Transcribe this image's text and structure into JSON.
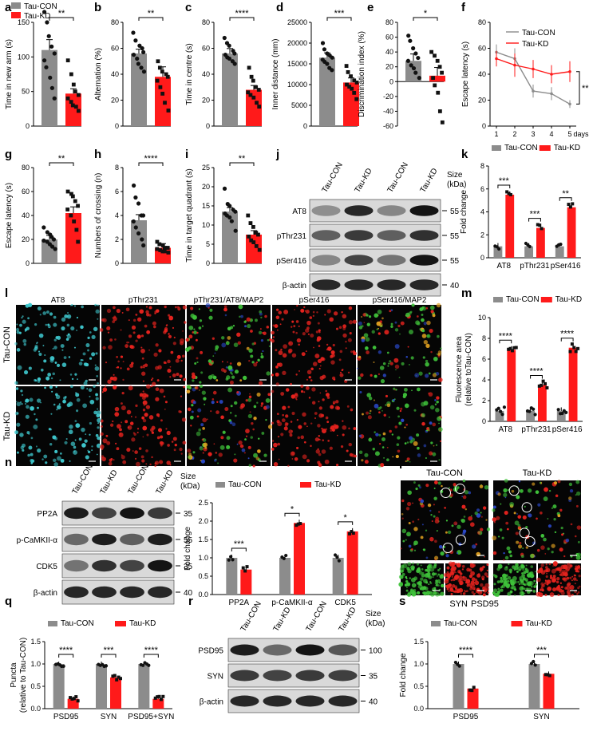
{
  "colors": {
    "con": "#8c8c8c",
    "kd": "#ff1a1a",
    "dot": "#111111",
    "ifGreen": "#3fc23a",
    "ifRed": "#e8231e",
    "ifCyan": "#3fc9cf",
    "ifBlue": "#2a48c8"
  },
  "legend": {
    "con": "Tau-CON",
    "kd": "Tau-KD"
  },
  "panel_labels": [
    "a",
    "b",
    "c",
    "d",
    "e",
    "f",
    "g",
    "h",
    "i",
    "j",
    "k",
    "l",
    "m",
    "n",
    "o",
    "p",
    "q",
    "r",
    "s"
  ],
  "chart_data": [
    {
      "id": "a",
      "type": "bar",
      "ylabel": "Time in new arm (s)",
      "ylim": [
        0,
        150
      ],
      "ticks": [
        0,
        50,
        100,
        150
      ],
      "values": [
        110,
        47
      ],
      "sig": "**",
      "dots": [
        [
          165,
          150,
          130,
          115,
          105,
          95,
          85,
          70,
          55,
          40
        ],
        [
          95,
          75,
          60,
          50,
          45,
          40,
          35,
          30,
          28,
          22
        ]
      ]
    },
    {
      "id": "b",
      "type": "bar",
      "ylabel": "Alternation (%)",
      "ylim": [
        0,
        80
      ],
      "ticks": [
        0,
        20,
        40,
        60,
        80
      ],
      "values": [
        56,
        38
      ],
      "sig": "**",
      "dots": [
        [
          72,
          66,
          62,
          60,
          57,
          55,
          52,
          48,
          45,
          42
        ],
        [
          50,
          45,
          42,
          40,
          38,
          35,
          30,
          25,
          18,
          12
        ]
      ]
    },
    {
      "id": "c",
      "type": "bar",
      "ylabel": "Time in centre (s)",
      "ylim": [
        0,
        80
      ],
      "ticks": [
        0,
        20,
        40,
        60,
        80
      ],
      "values": [
        56,
        28
      ],
      "sig": "****",
      "dots": [
        [
          68,
          64,
          62,
          58,
          56,
          55,
          53,
          52,
          50,
          48
        ],
        [
          45,
          38,
          35,
          30,
          28,
          26,
          24,
          22,
          18,
          15
        ]
      ]
    },
    {
      "id": "d",
      "type": "bar",
      "ylabel": "Inner distance (mm)",
      "ylim": [
        0,
        25000
      ],
      "ticks": [
        0,
        5000,
        10000,
        15000,
        20000,
        25000
      ],
      "values": [
        16500,
        10500
      ],
      "sig": "***",
      "dots": [
        [
          20000,
          18500,
          17500,
          17000,
          16500,
          16000,
          15500,
          15000,
          14000,
          13500
        ],
        [
          14500,
          13000,
          12000,
          11000,
          10500,
          10000,
          9500,
          9000,
          8000,
          6500
        ]
      ]
    },
    {
      "id": "e",
      "type": "bar",
      "ylabel": "Discrimination index (%)",
      "ylim": [
        -60,
        80
      ],
      "ticks": [
        -60,
        -40,
        -20,
        0,
        20,
        40,
        60,
        80
      ],
      "values": [
        28,
        8
      ],
      "sig": "*",
      "dots": [
        [
          62,
          55,
          45,
          38,
          32,
          28,
          22,
          18,
          12,
          5
        ],
        [
          40,
          35,
          28,
          20,
          12,
          5,
          -5,
          -15,
          -40,
          -55
        ]
      ]
    },
    {
      "id": "f",
      "type": "line",
      "ylabel": "Escape latency (s)",
      "xlabel": "days",
      "ylim": [
        0,
        80
      ],
      "ticks": [
        0,
        20,
        40,
        60,
        80
      ],
      "x": [
        1,
        2,
        3,
        4,
        5
      ],
      "sig": "**",
      "series": [
        {
          "name": "Tau-CON",
          "values": [
            57,
            52,
            27,
            25,
            17
          ],
          "err": [
            6,
            8,
            5,
            5,
            3
          ]
        },
        {
          "name": "Tau-KD",
          "values": [
            52,
            47,
            44,
            40,
            42
          ],
          "err": [
            6,
            9,
            7,
            7,
            8
          ]
        }
      ]
    },
    {
      "id": "g",
      "type": "bar",
      "ylabel": "Escape latency (s)",
      "ylim": [
        0,
        80
      ],
      "ticks": [
        0,
        20,
        40,
        60,
        80
      ],
      "values": [
        20,
        42
      ],
      "sig": "**",
      "dots": [
        [
          30,
          26,
          24,
          22,
          20,
          19,
          18,
          16,
          14,
          12
        ],
        [
          60,
          58,
          56,
          52,
          48,
          45,
          40,
          35,
          28,
          18
        ]
      ]
    },
    {
      "id": "h",
      "type": "bar",
      "ylabel": "Numbers of crossing (n)",
      "ylim": [
        0,
        8
      ],
      "ticks": [
        0,
        2,
        4,
        6,
        8
      ],
      "values": [
        3.6,
        1.3
      ],
      "sig": "****",
      "dots": [
        [
          6.5,
          5.5,
          5,
          4,
          4,
          3.5,
          3,
          2.5,
          2,
          1.5
        ],
        [
          1.8,
          1.6,
          1.5,
          1.3,
          1.3,
          1.2,
          1.1,
          1,
          1,
          0.9
        ]
      ]
    },
    {
      "id": "i",
      "type": "bar",
      "ylabel": "Time in target quadrant (s)",
      "ylim": [
        0,
        25
      ],
      "ticks": [
        0,
        5,
        10,
        15,
        20,
        25
      ],
      "values": [
        13.5,
        7.5
      ],
      "sig": "**",
      "dots": [
        [
          19.5,
          15.5,
          15,
          14,
          13.5,
          13,
          12.5,
          12,
          11,
          8.5
        ],
        [
          12.5,
          10.5,
          9.5,
          8,
          7.5,
          7,
          6,
          5.5,
          4.5,
          3.5
        ]
      ]
    },
    {
      "id": "k",
      "type": "bar",
      "ylabel": "Fold change",
      "ylim": [
        0,
        8
      ],
      "ticks": [
        0,
        2,
        4,
        6,
        8
      ],
      "categories": [
        "AT8",
        "pThr231",
        "pSer416"
      ],
      "series": [
        {
          "name": "Tau-CON",
          "values": [
            1,
            1,
            1
          ]
        },
        {
          "name": "Tau-KD",
          "values": [
            5.5,
            2.6,
            4.4
          ]
        }
      ],
      "sig": [
        "***",
        "***",
        "**"
      ]
    },
    {
      "id": "m",
      "type": "bar",
      "ylabel": "Fluorescence area (relative toTau-CON)",
      "ylim": [
        0,
        10
      ],
      "ticks": [
        0,
        2,
        4,
        6,
        8,
        10
      ],
      "categories": [
        "AT8",
        "pThr231",
        "pSer416"
      ],
      "series": [
        {
          "name": "Tau-CON",
          "values": [
            1,
            1,
            1
          ]
        },
        {
          "name": "Tau-KD",
          "values": [
            6.9,
            3.5,
            7.1
          ]
        }
      ],
      "sig": [
        "****",
        "****",
        "****"
      ]
    },
    {
      "id": "o",
      "type": "bar",
      "ylabel": "Fold change",
      "ylim": [
        0,
        2.5
      ],
      "ticks": [
        0.0,
        0.5,
        1.0,
        1.5,
        2.0,
        2.5
      ],
      "categories": [
        "PP2A",
        "p-CaMKII-α",
        "CDK5"
      ],
      "series": [
        {
          "name": "Tau-CON",
          "values": [
            1.0,
            1.0,
            1.0
          ]
        },
        {
          "name": "Tau-KD",
          "values": [
            0.68,
            1.95,
            1.72
          ]
        }
      ],
      "sig": [
        "***",
        "*",
        "*"
      ]
    },
    {
      "id": "q",
      "type": "bar",
      "ylabel": "Puncta (relative to Tau-CON)",
      "ylim": [
        0,
        1.5
      ],
      "ticks": [
        0.0,
        0.5,
        1.0,
        1.5
      ],
      "categories": [
        "PSD95",
        "SYN",
        "PSD95+SYN"
      ],
      "series": [
        {
          "name": "Tau-CON",
          "values": [
            1.0,
            1.0,
            1.0
          ]
        },
        {
          "name": "Tau-KD",
          "values": [
            0.22,
            0.7,
            0.22
          ]
        }
      ],
      "sig": [
        "****",
        "***",
        "****"
      ]
    },
    {
      "id": "s",
      "type": "bar",
      "ylabel": "Fold change",
      "ylim": [
        0,
        1.5
      ],
      "ticks": [
        0.0,
        0.5,
        1.0,
        1.5
      ],
      "categories": [
        "PSD95",
        "SYN"
      ],
      "series": [
        {
          "name": "Tau-CON",
          "values": [
            1.0,
            1.0
          ]
        },
        {
          "name": "Tau-KD",
          "values": [
            0.45,
            0.78
          ]
        }
      ],
      "sig": [
        "****",
        "***"
      ]
    }
  ],
  "blots": {
    "j": {
      "lanes": [
        "Tau-CON",
        "Tau-KD",
        "Tau-CON",
        "Tau-KD"
      ],
      "size_header": "Size (kDa)",
      "rows": [
        {
          "label": "AT8",
          "size": "55",
          "bands": [
            0.3,
            0.85,
            0.35,
            0.95
          ]
        },
        {
          "label": "pThr231",
          "size": "55",
          "bands": [
            0.55,
            0.75,
            0.55,
            0.8
          ]
        },
        {
          "label": "pSer416",
          "size": "55",
          "bands": [
            0.35,
            0.7,
            0.45,
            0.95
          ]
        },
        {
          "label": "β-actin",
          "size": "40",
          "bands": [
            0.85,
            0.85,
            0.85,
            0.85
          ]
        }
      ]
    },
    "n": {
      "lanes": [
        "Tau-CON",
        "Tau-KD",
        "Tau-CON",
        "Tau-KD"
      ],
      "size_header": "Size (kDa)",
      "rows": [
        {
          "label": "PP2A",
          "size": "35",
          "bands": [
            0.9,
            0.7,
            0.95,
            0.75
          ]
        },
        {
          "label": "p-CaMKII-α",
          "size": "55",
          "bands": [
            0.5,
            0.9,
            0.55,
            0.9
          ]
        },
        {
          "label": "CDK5",
          "size": "35",
          "bands": [
            0.45,
            0.8,
            0.7,
            0.95
          ]
        },
        {
          "label": "β-actin",
          "size": "40",
          "bands": [
            0.85,
            0.85,
            0.85,
            0.85
          ]
        }
      ]
    },
    "r": {
      "lanes": [
        "Tau-CON",
        "Tau-KD",
        "Tau-CON",
        "Tau-KD"
      ],
      "size_header": "Size (kDa)",
      "rows": [
        {
          "label": "PSD95",
          "size": "100",
          "bands": [
            0.9,
            0.5,
            0.95,
            0.6
          ]
        },
        {
          "label": "SYN",
          "size": "35",
          "bands": [
            0.75,
            0.7,
            0.75,
            0.72
          ]
        },
        {
          "label": "β-actin",
          "size": "40",
          "bands": [
            0.85,
            0.85,
            0.85,
            0.85
          ]
        }
      ]
    }
  },
  "micro_l": {
    "cols": [
      "AT8",
      "pThr231",
      "pThr231/AT8/MAP2",
      "pSer416",
      "pSer416/MAP2"
    ],
    "rows": [
      "Tau-CON",
      "Tau-KD"
    ]
  },
  "micro_p": {
    "cols": [
      "Tau-CON",
      "Tau-KD"
    ],
    "legend_syn": "SYN",
    "legend_psd": "PSD95"
  }
}
